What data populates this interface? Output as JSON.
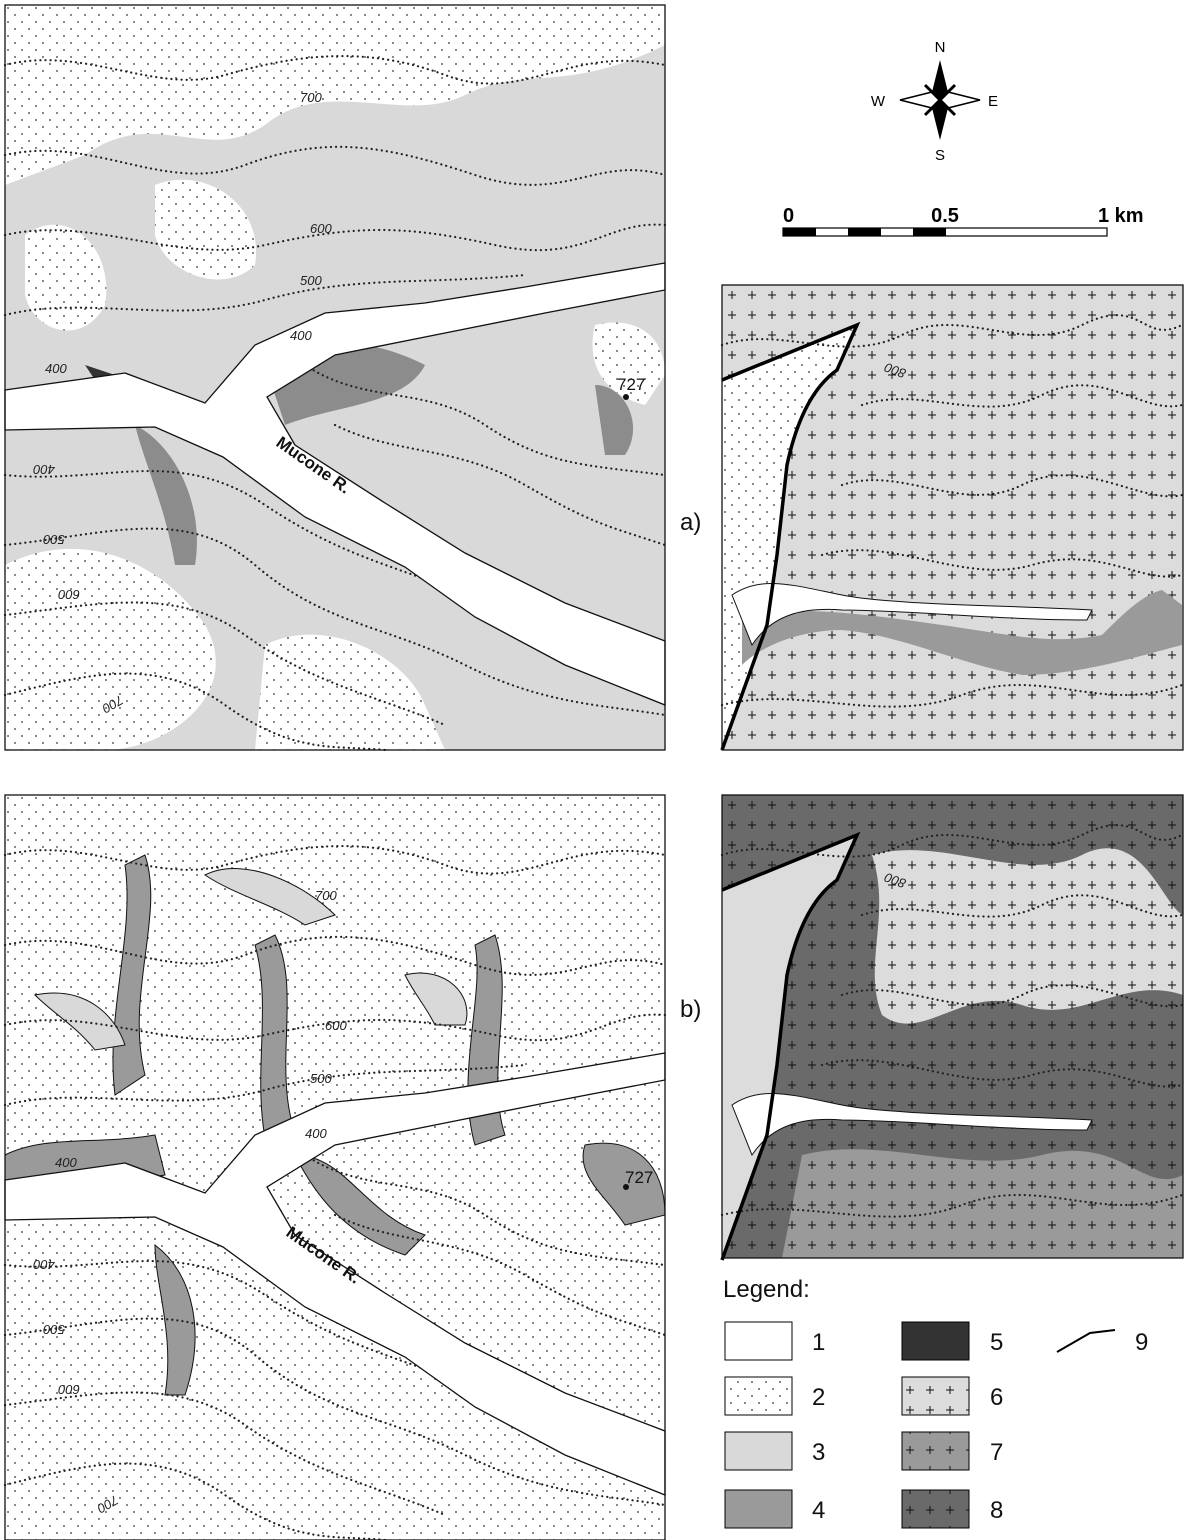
{
  "compass": {
    "n": "N",
    "w": "W",
    "e": "E",
    "s": "S"
  },
  "scale": {
    "start": "0",
    "middle": "0.5",
    "end": "1 km"
  },
  "panels": [
    {
      "label": "a)",
      "river": "Mucone R.",
      "peak": "727",
      "contours": [
        "700",
        "600",
        "500",
        "400",
        "400",
        "400",
        "500",
        "600",
        "700"
      ],
      "inset_contour": "800"
    },
    {
      "label": "b)",
      "river": "Mucone R.",
      "peak": "727",
      "contours": [
        "700",
        "600",
        "500",
        "400",
        "400",
        "400",
        "500",
        "600",
        "700"
      ],
      "inset_contour": "800"
    }
  ],
  "legend": {
    "title": "Legend:",
    "items": [
      "1",
      "2",
      "3",
      "4",
      "5",
      "6",
      "7",
      "8",
      "9"
    ]
  }
}
